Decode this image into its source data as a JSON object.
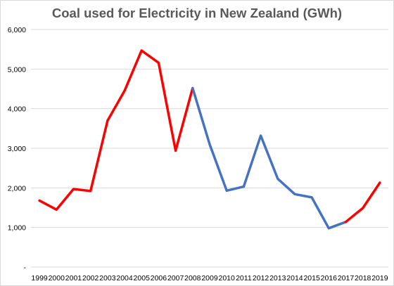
{
  "chart_data": {
    "type": "line",
    "title": "Coal used for Electricity in New Zealand (GWh)",
    "xlabel": "",
    "ylabel": "",
    "ylim": [
      0,
      6000
    ],
    "y_ticks": [
      "-",
      "1,000",
      "2,000",
      "3,000",
      "4,000",
      "5,000",
      "6,000"
    ],
    "grid": true,
    "legend": "none",
    "categories": [
      "1999",
      "2000",
      "2001",
      "2002",
      "2003",
      "2004",
      "2005",
      "2006",
      "2007",
      "2008",
      "2009",
      "2010",
      "2011",
      "2012",
      "2013",
      "2014",
      "2015",
      "2016",
      "2017",
      "2018",
      "2019"
    ],
    "values": [
      1680,
      1450,
      1970,
      1920,
      3700,
      4450,
      5470,
      5160,
      2940,
      4520,
      3100,
      1930,
      2030,
      3320,
      2230,
      1840,
      1760,
      980,
      1140,
      1490,
      2130
    ],
    "segments": [
      {
        "color": "#ff0000",
        "from": "1999",
        "to": "2008"
      },
      {
        "color": "#4472c4",
        "from": "2008",
        "to": "2017"
      },
      {
        "color": "#ff0000",
        "from": "2017",
        "to": "2019"
      }
    ],
    "colors": {
      "red": "#ff0000",
      "blue": "#4472c4",
      "grid": "#d9d9d9"
    }
  }
}
